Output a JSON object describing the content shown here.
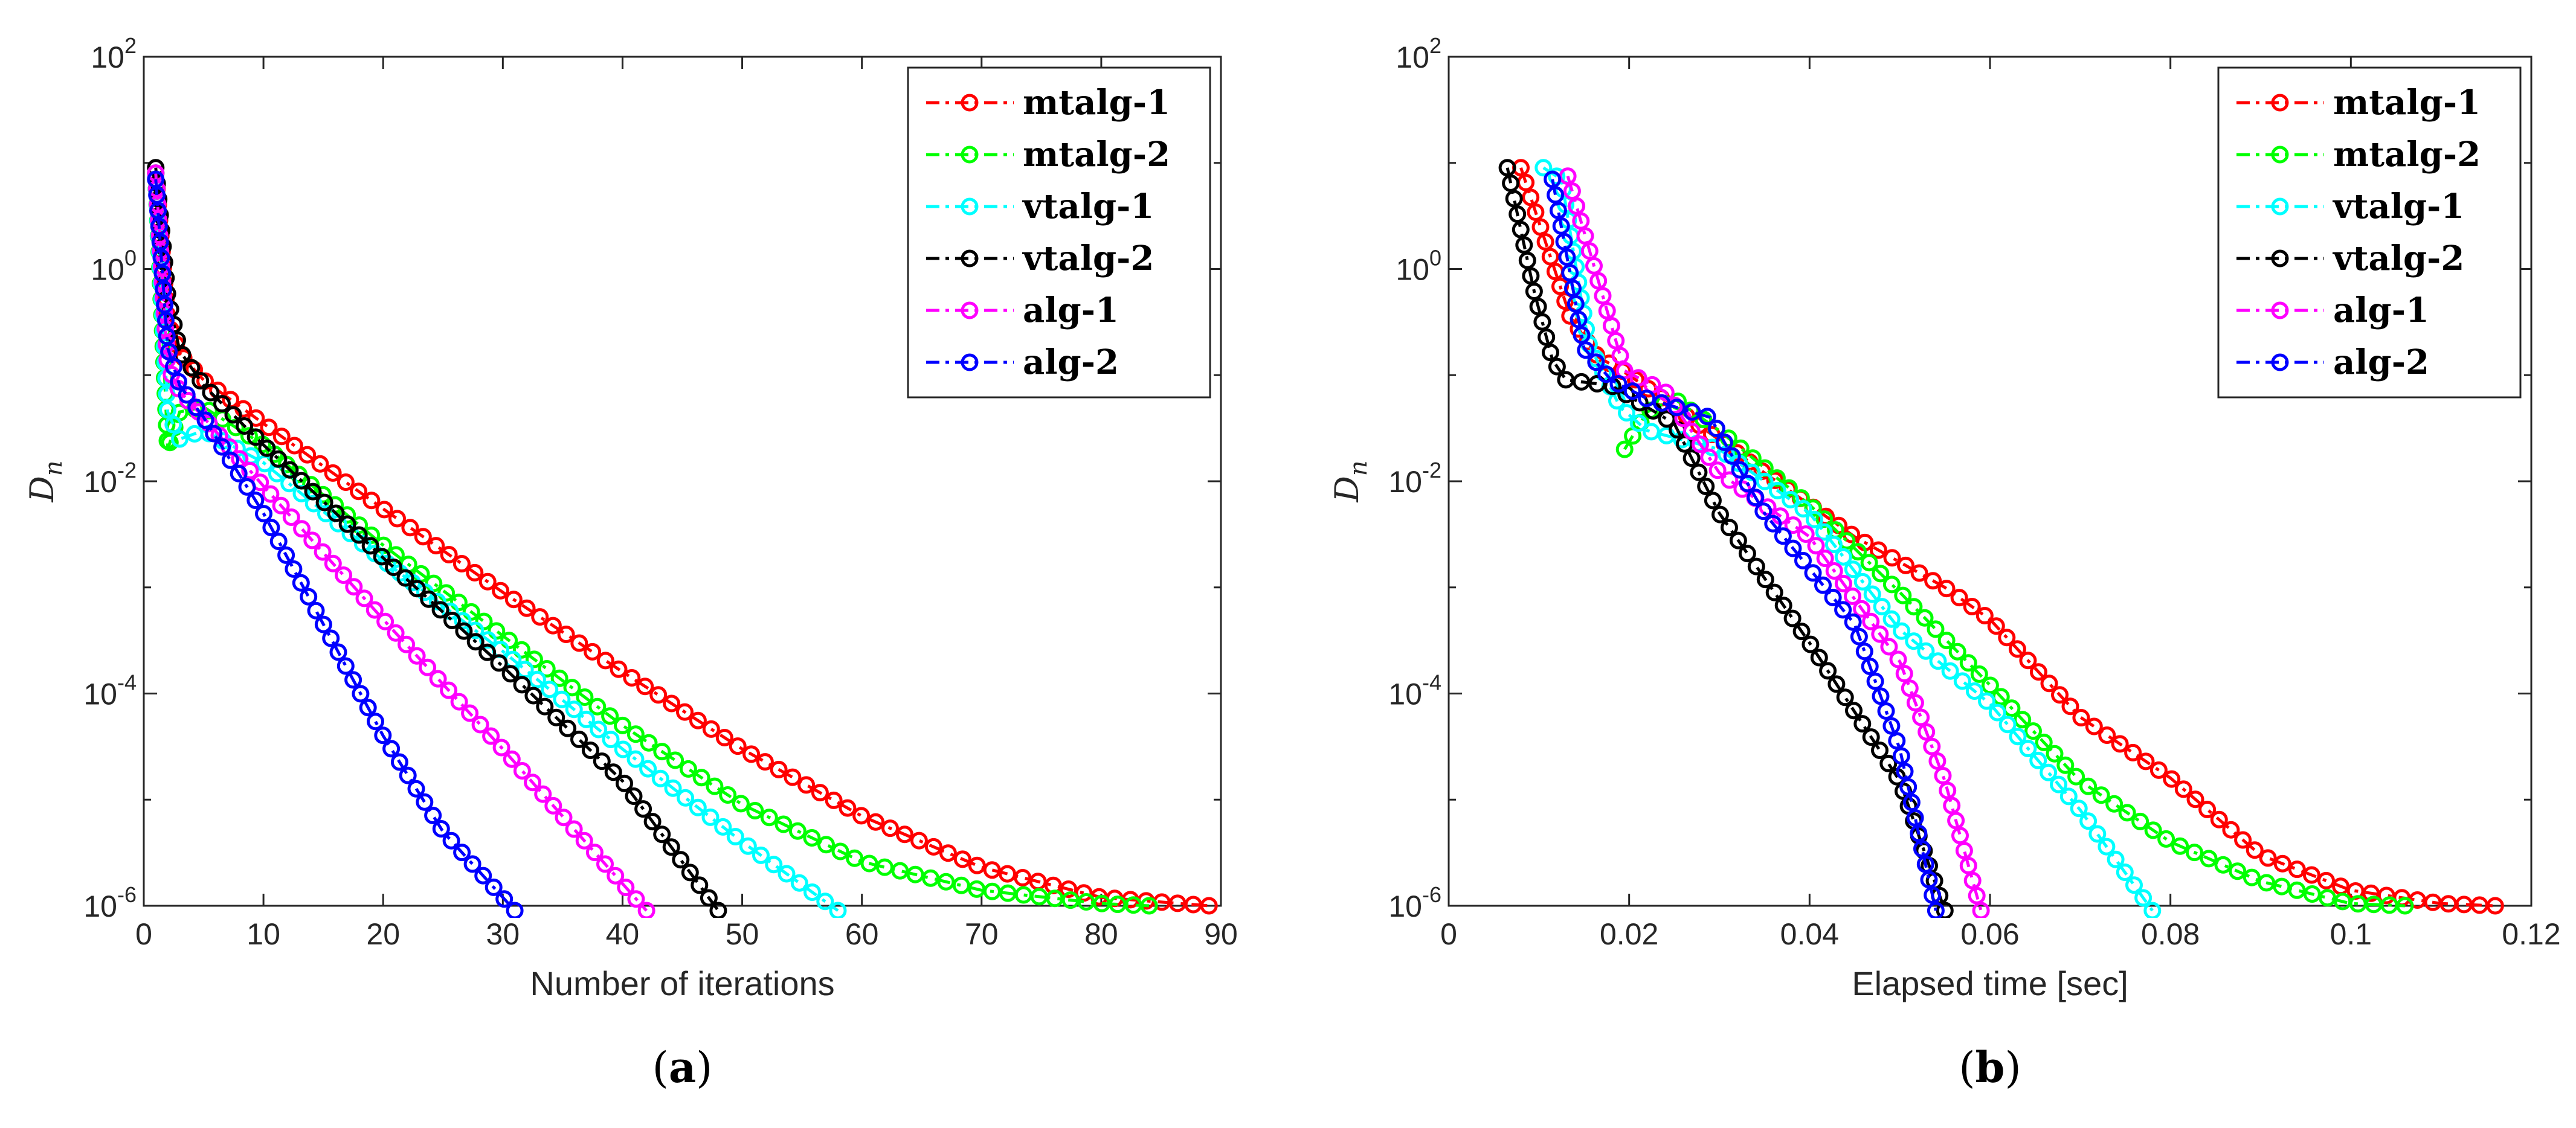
{
  "chart_data": [
    {
      "type": "line",
      "panel_label": "(a)",
      "panel_letter": "a",
      "xlabel": "Number of iterations",
      "ylabel": "D_n",
      "ylabel_main": "D",
      "ylabel_sub": "n",
      "xlim": [
        0,
        90
      ],
      "ylim": [
        1e-06,
        100
      ],
      "yscale": "log",
      "x_ticks": [
        0,
        10,
        20,
        30,
        40,
        50,
        60,
        70,
        80,
        90
      ],
      "y_ticks": [
        {
          "base": "10",
          "exp": "2",
          "value": 100
        },
        {
          "base": "10",
          "exp": "0",
          "value": 1
        },
        {
          "base": "10",
          "exp": "-2",
          "value": 0.01
        },
        {
          "base": "10",
          "exp": "-4",
          "value": 0.0001
        },
        {
          "base": "10",
          "exp": "-6",
          "value": 1e-06
        }
      ],
      "grid": false,
      "legend_position": "top-right",
      "series": [
        {
          "name": "mtalg-1",
          "color": "#ff0000",
          "x": [
            1,
            2,
            3,
            5,
            10,
            20,
            30,
            40,
            50,
            60,
            70,
            80,
            89
          ],
          "y": [
            8,
            0.32,
            0.16,
            0.09,
            0.035,
            0.0055,
            0.0009,
            0.00016,
            3e-05,
            7e-06,
            2.3e-06,
            1.2e-06,
            1e-06
          ]
        },
        {
          "name": "mtalg-2",
          "color": "#00ff00",
          "x": [
            1,
            2,
            3,
            5,
            10,
            20,
            30,
            40,
            50,
            60,
            70,
            80,
            84
          ],
          "y": [
            8,
            0.02,
            0.045,
            0.05,
            0.022,
            0.0025,
            0.00035,
            5e-05,
            9e-06,
            2.6e-06,
            1.4e-06,
            1.05e-06,
            1e-06
          ]
        },
        {
          "name": "vtalg-1",
          "color": "#00ffff",
          "x": [
            1,
            2,
            3,
            5,
            10,
            20,
            30,
            40,
            50,
            58
          ],
          "y": [
            8,
            0.045,
            0.025,
            0.03,
            0.015,
            0.0018,
            0.00025,
            3e-05,
            4e-06,
            9e-07
          ]
        },
        {
          "name": "vtalg-2",
          "color": "#000000",
          "x": [
            1,
            2,
            3,
            5,
            10,
            20,
            30,
            40,
            48
          ],
          "y": [
            9,
            0.55,
            0.17,
            0.08,
            0.022,
            0.0019,
            0.00018,
            1.5e-05,
            9e-07
          ]
        },
        {
          "name": "alg-1",
          "color": "#ff00ff",
          "x": [
            1,
            2,
            3,
            5,
            10,
            20,
            30,
            42
          ],
          "y": [
            8,
            0.12,
            0.07,
            0.04,
            0.009,
            0.0005,
            3e-05,
            9e-07
          ]
        },
        {
          "name": "alg-2",
          "color": "#0000ff",
          "x": [
            1,
            2,
            3,
            5,
            10,
            15,
            20,
            25,
            30,
            31
          ],
          "y": [
            7,
            0.18,
            0.08,
            0.04,
            0.005,
            0.00045,
            4e-05,
            5e-06,
            1.2e-06,
            9e-07
          ]
        }
      ]
    },
    {
      "type": "line",
      "panel_label": "(b)",
      "panel_letter": "b",
      "xlabel": "Elapsed time [sec]",
      "ylabel": "D_n",
      "ylabel_main": "D",
      "ylabel_sub": "n",
      "xlim": [
        0,
        0.12
      ],
      "ylim": [
        1e-06,
        100
      ],
      "yscale": "log",
      "x_ticks": [
        "0",
        "0.02",
        "0.04",
        "0.06",
        "0.08",
        "0.1",
        "0.12"
      ],
      "y_ticks": [
        {
          "base": "10",
          "exp": "2",
          "value": 100
        },
        {
          "base": "10",
          "exp": "0",
          "value": 1
        },
        {
          "base": "10",
          "exp": "-2",
          "value": 0.01
        },
        {
          "base": "10",
          "exp": "-4",
          "value": 0.0001
        },
        {
          "base": "10",
          "exp": "-6",
          "value": 1e-06
        }
      ],
      "grid": false,
      "legend_position": "top-right",
      "series": [
        {
          "name": "mtalg-1",
          "color": "#ff0000",
          "x": [
            0.008,
            0.0135,
            0.0165,
            0.02,
            0.025,
            0.035,
            0.045,
            0.055,
            0.06,
            0.07,
            0.08,
            0.09,
            0.1,
            0.11,
            0.116
          ],
          "y": [
            9,
            0.35,
            0.15,
            0.1,
            0.05,
            0.012,
            0.003,
            0.001,
            0.0005,
            6e-05,
            1.6e-05,
            3e-06,
            1.4e-06,
            1.05e-06,
            1e-06
          ]
        },
        {
          "name": "mtalg-2",
          "color": "#00ff00",
          "x": [
            0.0195,
            0.022,
            0.025,
            0.03,
            0.04,
            0.05,
            0.06,
            0.07,
            0.08,
            0.09,
            0.1,
            0.106
          ],
          "y": [
            0.02,
            0.045,
            0.06,
            0.03,
            0.006,
            0.0009,
            0.00012,
            1.5e-05,
            4e-06,
            1.7e-06,
            1.05e-06,
            1e-06
          ]
        },
        {
          "name": "vtalg-1",
          "color": "#00ffff",
          "x": [
            0.0105,
            0.0125,
            0.0155,
            0.019,
            0.022,
            0.03,
            0.04,
            0.05,
            0.06,
            0.07,
            0.078
          ],
          "y": [
            9,
            7,
            0.2,
            0.05,
            0.03,
            0.02,
            0.005,
            0.0004,
            8e-05,
            8e-06,
            9e-07
          ]
        },
        {
          "name": "vtalg-2",
          "color": "#000000",
          "x": [
            0.0065,
            0.0095,
            0.0115,
            0.013,
            0.018,
            0.025,
            0.03,
            0.04,
            0.05,
            0.055
          ],
          "y": [
            9,
            0.6,
            0.14,
            0.09,
            0.08,
            0.035,
            0.005,
            0.0003,
            1.5e-05,
            9e-07
          ]
        },
        {
          "name": "alg-1",
          "color": "#ff00ff",
          "x": [
            0.0132,
            0.0195,
            0.024,
            0.03,
            0.04,
            0.05,
            0.055,
            0.059
          ],
          "y": [
            7.5,
            0.11,
            0.07,
            0.012,
            0.003,
            0.0002,
            1.5e-05,
            9e-07
          ]
        },
        {
          "name": "alg-2",
          "color": "#0000ff",
          "x": [
            0.0115,
            0.015,
            0.018,
            0.022,
            0.029,
            0.035,
            0.045,
            0.05,
            0.054
          ],
          "y": [
            7,
            0.18,
            0.09,
            0.06,
            0.04,
            0.005,
            0.00045,
            3e-05,
            9e-07
          ]
        }
      ]
    }
  ]
}
